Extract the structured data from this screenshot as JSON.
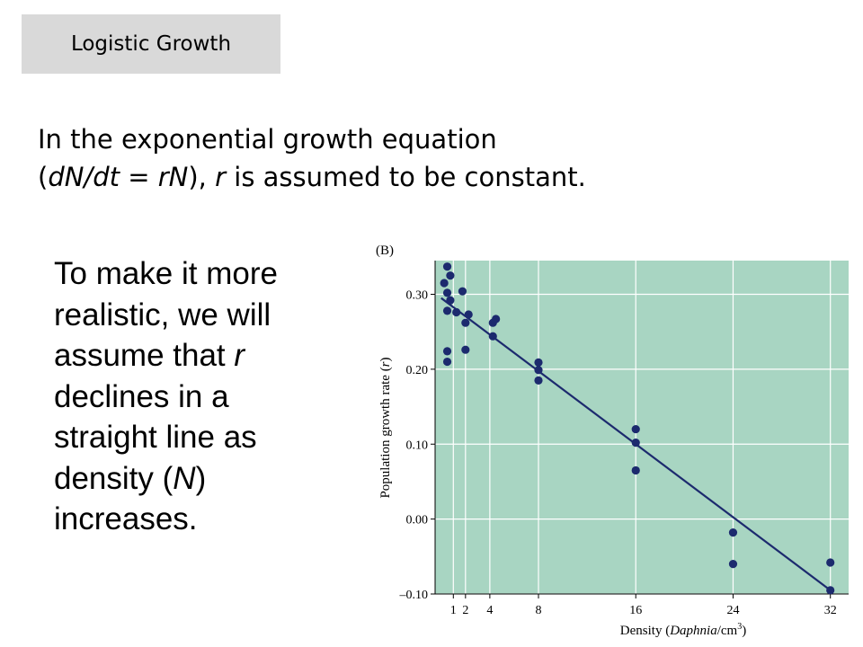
{
  "slide": {
    "title": "Logistic Growth",
    "intro": {
      "line1": "In the exponential growth equation",
      "line2_pre": "(",
      "line2_eq": "dN/dt = rN",
      "line2_mid": "), ",
      "line2_r": "r",
      "line2_post": " is assumed to be constant."
    },
    "side": {
      "l1": "To make it more",
      "l2": "realistic, we will",
      "l3_pre": "assume that ",
      "l3_r": "r",
      "l4": "declines in a",
      "l5": "straight line as",
      "l6_pre": "density (",
      "l6_n": "N",
      "l6_post": ")",
      "l7": "increases."
    }
  },
  "chart_data": {
    "type": "scatter",
    "panel_label": "(B)",
    "ylabel_pre": "Population growth rate (",
    "ylabel_var": "r",
    "ylabel_post": ")",
    "xlabel_pre": "Density (",
    "xlabel_var": "Daphnia",
    "xlabel_post": "/cm",
    "xlabel_sup": "3",
    "xlabel_close": ")",
    "xlim": [
      -0.5,
      33.5
    ],
    "ylim": [
      -0.1,
      0.345
    ],
    "x_ticks": [
      1,
      2,
      4,
      8,
      16,
      24,
      32
    ],
    "x_tick_labels": [
      "1",
      "2",
      "4",
      "8",
      "16",
      "24",
      "32"
    ],
    "y_ticks": [
      -0.1,
      0.0,
      0.1,
      0.2,
      0.3
    ],
    "y_tick_labels": [
      "–0.10",
      "0.00",
      "0.10",
      "0.20",
      "0.30"
    ],
    "grid": true,
    "background_color": "#a8d5c2",
    "point_color": "#1c2a6e",
    "line_color": "#1c2a6e",
    "points": [
      {
        "x": 0.5,
        "y": 0.337
      },
      {
        "x": 0.25,
        "y": 0.315
      },
      {
        "x": 0.75,
        "y": 0.325
      },
      {
        "x": 0.5,
        "y": 0.302
      },
      {
        "x": 0.75,
        "y": 0.292
      },
      {
        "x": 0.5,
        "y": 0.278
      },
      {
        "x": 1.25,
        "y": 0.276
      },
      {
        "x": 1.75,
        "y": 0.304
      },
      {
        "x": 2.25,
        "y": 0.273
      },
      {
        "x": 2.0,
        "y": 0.262
      },
      {
        "x": 0.5,
        "y": 0.224
      },
      {
        "x": 0.5,
        "y": 0.21
      },
      {
        "x": 2.0,
        "y": 0.226
      },
      {
        "x": 4.5,
        "y": 0.267
      },
      {
        "x": 4.25,
        "y": 0.262
      },
      {
        "x": 4.25,
        "y": 0.244
      },
      {
        "x": 8.0,
        "y": 0.209
      },
      {
        "x": 8.0,
        "y": 0.199
      },
      {
        "x": 8.0,
        "y": 0.185
      },
      {
        "x": 16.0,
        "y": 0.12
      },
      {
        "x": 16.0,
        "y": 0.102
      },
      {
        "x": 16.0,
        "y": 0.065
      },
      {
        "x": 24.0,
        "y": -0.018
      },
      {
        "x": 24.0,
        "y": -0.06
      },
      {
        "x": 32.0,
        "y": -0.058
      },
      {
        "x": 32.0,
        "y": -0.095
      }
    ],
    "fit_line": {
      "x1": 0.0,
      "y1": 0.295,
      "x2": 32.0,
      "y2": -0.095
    }
  }
}
